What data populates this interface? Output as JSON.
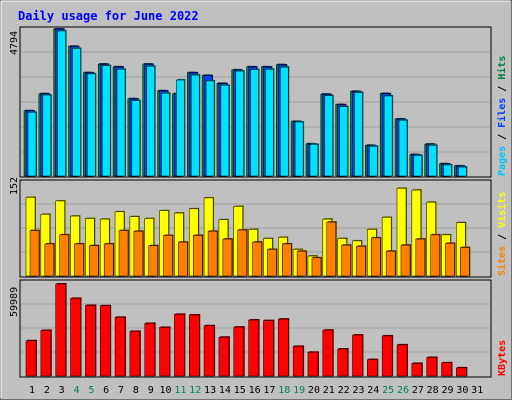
{
  "chart_data": [
    {
      "type": "bar",
      "panel": "hits-files-pages",
      "title": "Daily usage for June 2022",
      "categories": [
        "1",
        "2",
        "3",
        "4",
        "5",
        "6",
        "7",
        "8",
        "9",
        "10",
        "11",
        "12",
        "13",
        "14",
        "15",
        "16",
        "17",
        "18",
        "19",
        "20",
        "21",
        "22",
        "23",
        "24",
        "25",
        "26",
        "27",
        "28",
        "29",
        "30",
        "31"
      ],
      "ylabel_max": "4794",
      "ylim": [
        0,
        4794
      ],
      "legend": [
        {
          "text": "Hits",
          "color": "#008040"
        },
        {
          "text": "Files",
          "color": "#0040FF"
        },
        {
          "text": "Pages",
          "color": "#00C0FF"
        }
      ],
      "series": [
        {
          "name": "Hits",
          "color": "#008040",
          "values": [
            2130,
            2680,
            4794,
            4230,
            3370,
            3650,
            3560,
            2520,
            3650,
            2780,
            2680,
            3370,
            3280,
            3020,
            3460,
            3560,
            3560,
            3630,
            1780,
            1050,
            2670,
            2330,
            2760,
            1000,
            2690,
            1860,
            700,
            1040,
            400,
            330,
            0
          ]
        },
        {
          "name": "Files",
          "color": "#0040FF",
          "values": [
            2120,
            2680,
            4790,
            4220,
            3360,
            3640,
            3550,
            2510,
            3640,
            2770,
            2680,
            3360,
            3270,
            3010,
            3450,
            3550,
            3550,
            3620,
            1770,
            1040,
            2660,
            2320,
            2750,
            990,
            2680,
            1850,
            690,
            1030,
            390,
            320,
            0
          ]
        },
        {
          "name": "Pages",
          "color": "#00E0FF",
          "values": [
            2080,
            2640,
            4730,
            4160,
            3330,
            3600,
            3480,
            2460,
            3580,
            2700,
            3130,
            3290,
            3100,
            2960,
            3420,
            3470,
            3480,
            3550,
            1760,
            1030,
            2620,
            2260,
            2720,
            970,
            2610,
            1820,
            670,
            1000,
            360,
            290,
            0
          ]
        }
      ]
    },
    {
      "type": "bar",
      "panel": "visits-sites",
      "categories": [
        "1",
        "2",
        "3",
        "4",
        "5",
        "6",
        "7",
        "8",
        "9",
        "10",
        "11",
        "12",
        "13",
        "14",
        "15",
        "16",
        "17",
        "18",
        "19",
        "20",
        "21",
        "22",
        "23",
        "24",
        "25",
        "26",
        "27",
        "28",
        "29",
        "30",
        "31"
      ],
      "ylabel_max": "152",
      "ylim": [
        0,
        152
      ],
      "legend": [
        {
          "text": "Visits",
          "color": "#FFFF00"
        },
        {
          "text": "Sites",
          "color": "#FF8000"
        }
      ],
      "series": [
        {
          "name": "Visits",
          "color": "#FFFF00",
          "values": [
            130,
            102,
            124,
            99,
            95,
            94,
            106,
            98,
            95,
            108,
            104,
            111,
            129,
            93,
            115,
            77,
            62,
            64,
            44,
            33,
            94,
            62,
            58,
            77,
            97,
            145,
            142,
            122,
            68,
            88,
            0
          ]
        },
        {
          "name": "Sites",
          "color": "#FF8000",
          "values": [
            75,
            53,
            68,
            53,
            50,
            53,
            75,
            74,
            50,
            67,
            56,
            67,
            74,
            61,
            76,
            56,
            44,
            53,
            41,
            30,
            89,
            51,
            49,
            63,
            41,
            51,
            61,
            68,
            54,
            47,
            0
          ]
        }
      ]
    },
    {
      "type": "bar",
      "panel": "kbytes",
      "categories": [
        "1",
        "2",
        "3",
        "4",
        "5",
        "6",
        "7",
        "8",
        "9",
        "10",
        "11",
        "12",
        "13",
        "14",
        "15",
        "16",
        "17",
        "18",
        "19",
        "20",
        "21",
        "22",
        "23",
        "24",
        "25",
        "26",
        "27",
        "28",
        "29",
        "30",
        "31"
      ],
      "ylabel_max": "59989",
      "ylim": [
        0,
        59989
      ],
      "legend": [
        {
          "text": "KBytes",
          "color": "#FF0000"
        }
      ],
      "series": [
        {
          "name": "KBytes",
          "color": "#FF0000",
          "values": [
            23000,
            29700,
            59989,
            50600,
            46000,
            45800,
            38300,
            29100,
            34300,
            31700,
            40200,
            39800,
            32800,
            25300,
            31900,
            36500,
            36100,
            37100,
            19300,
            15500,
            29900,
            17600,
            26700,
            10700,
            26100,
            20300,
            8200,
            12100,
            8600,
            5300,
            0
          ]
        }
      ]
    }
  ]
}
